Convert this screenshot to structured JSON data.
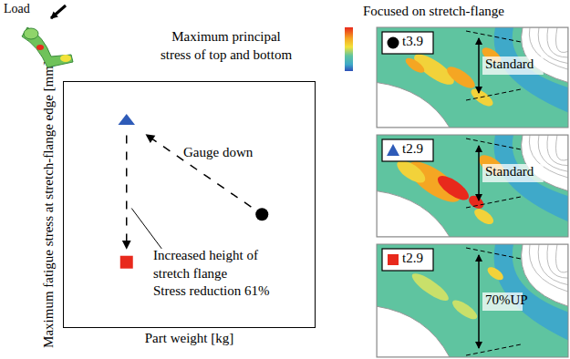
{
  "chart_data": {
    "type": "scatter",
    "x_label": "Part weight [kg]",
    "y_label": "Maximum fatigue stress at stretch-flange edge [mm]",
    "xlim": [
      0,
      10
    ],
    "ylim": [
      0,
      10
    ],
    "tick_labels": false,
    "grid": false,
    "series": [
      {
        "name": "t3.9",
        "color": "#000000",
        "marker": "circle",
        "x": [
          7.9
        ],
        "values": [
          4.6
        ]
      },
      {
        "name": "t2.9",
        "color": "#2e5bb8",
        "marker": "triangle-up",
        "x": [
          2.5
        ],
        "values": [
          8.4
        ]
      },
      {
        "name": "t2.9",
        "color": "#e8291c",
        "marker": "square",
        "x": [
          2.5
        ],
        "values": [
          2.65
        ]
      }
    ],
    "annotations": [
      {
        "lines": [
          "Gauge down"
        ],
        "from": 0,
        "to": 1
      },
      {
        "lines": [
          "Increased height of",
          "stretch flange",
          "Stress reduction 61%"
        ],
        "from": 1,
        "to": 2
      }
    ]
  },
  "figure": {
    "load_label": "Load",
    "stress_legend_lines": [
      "Maximum principal",
      "stress of top and bottom"
    ],
    "panel_heading": "Focused on stretch-flange",
    "height_labels": [
      "Standard",
      "Standard",
      "70%UP"
    ]
  }
}
